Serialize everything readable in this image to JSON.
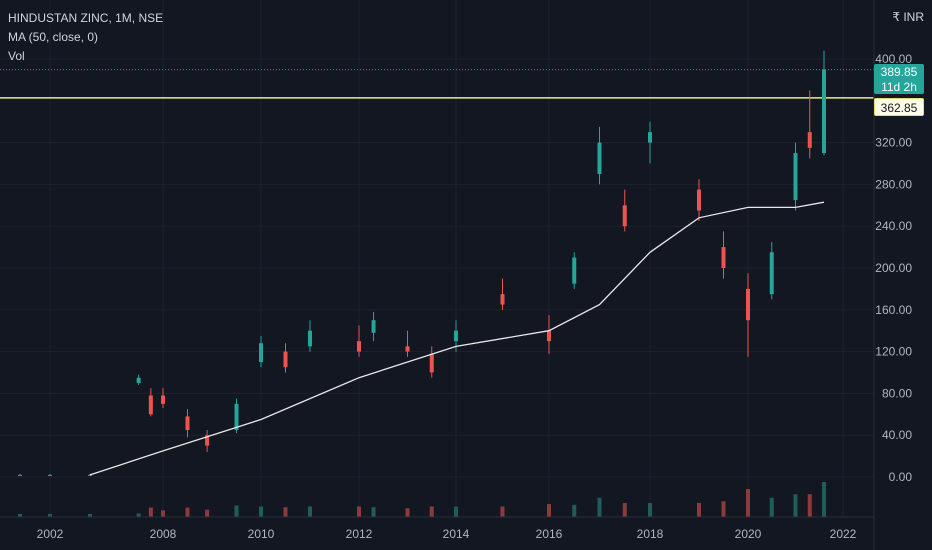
{
  "legend": {
    "symbol": "HINDUSTAN ZINC, 1M, NSE",
    "indicator": "MA (50, close, 0)",
    "volume": "Vol"
  },
  "currency": "₹ INR",
  "badges": {
    "last_price": "389.85",
    "countdown": "11d 2h",
    "level": "362.85"
  },
  "colors": {
    "background": "#131722",
    "up": "#26a69a",
    "down": "#ef5350",
    "ma": "#e8e8e8",
    "level_line": "#f5e98a",
    "grid": "#1e222d"
  },
  "chart_data": {
    "type": "candlestick",
    "title": "HINDUSTAN ZINC, 1M, NSE",
    "y_ticks": [
      "0.00",
      "40.00",
      "80.00",
      "120.00",
      "160.00",
      "200.00",
      "240.00",
      "280.00",
      "320.00",
      "400.00"
    ],
    "x_ticks": [
      "2002",
      "2008",
      "2010",
      "2012",
      "2014",
      "2016",
      "2018",
      "2020",
      "2022"
    ],
    "ylim": [
      -25,
      420
    ],
    "grid": true,
    "legend_position": "top-left",
    "horizontal_level": 362.85,
    "last_price": 389.85,
    "series": [
      {
        "name": "HINDUSTAN ZINC",
        "candles": [
          {
            "date": "2000",
            "o": 2,
            "h": 3,
            "l": 1,
            "c": 2
          },
          {
            "date": "2002",
            "o": 2,
            "h": 3,
            "l": 1,
            "c": 2
          },
          {
            "date": "2005",
            "o": 2,
            "h": 3,
            "l": 1,
            "c": 2
          },
          {
            "date": "2007",
            "o": 90,
            "h": 98,
            "l": 88,
            "c": 95
          },
          {
            "date": "2007.5",
            "o": 78,
            "h": 85,
            "l": 58,
            "c": 60
          },
          {
            "date": "2008",
            "o": 78,
            "h": 85,
            "l": 66,
            "c": 70
          },
          {
            "date": "2008.5",
            "o": 58,
            "h": 65,
            "l": 38,
            "c": 45
          },
          {
            "date": "2008.9",
            "o": 40,
            "h": 45,
            "l": 24,
            "c": 30
          },
          {
            "date": "2009.5",
            "o": 45,
            "h": 75,
            "l": 42,
            "c": 70
          },
          {
            "date": "2010",
            "o": 110,
            "h": 135,
            "l": 105,
            "c": 128
          },
          {
            "date": "2010.5",
            "o": 120,
            "h": 128,
            "l": 100,
            "c": 105
          },
          {
            "date": "2011",
            "o": 125,
            "h": 150,
            "l": 120,
            "c": 140
          },
          {
            "date": "2012",
            "o": 130,
            "h": 145,
            "l": 115,
            "c": 120
          },
          {
            "date": "2012.3",
            "o": 138,
            "h": 158,
            "l": 130,
            "c": 150
          },
          {
            "date": "2013",
            "o": 125,
            "h": 140,
            "l": 115,
            "c": 120
          },
          {
            "date": "2013.5",
            "o": 118,
            "h": 125,
            "l": 95,
            "c": 100
          },
          {
            "date": "2014",
            "o": 130,
            "h": 150,
            "l": 120,
            "c": 140
          },
          {
            "date": "2015",
            "o": 175,
            "h": 190,
            "l": 160,
            "c": 165
          },
          {
            "date": "2016",
            "o": 140,
            "h": 155,
            "l": 118,
            "c": 130
          },
          {
            "date": "2016.5",
            "o": 185,
            "h": 215,
            "l": 180,
            "c": 210
          },
          {
            "date": "2017",
            "o": 290,
            "h": 335,
            "l": 280,
            "c": 320
          },
          {
            "date": "2017.5",
            "o": 260,
            "h": 275,
            "l": 235,
            "c": 240
          },
          {
            "date": "2018",
            "o": 320,
            "h": 340,
            "l": 300,
            "c": 330
          },
          {
            "date": "2019",
            "o": 275,
            "h": 285,
            "l": 245,
            "c": 255
          },
          {
            "date": "2019.5",
            "o": 220,
            "h": 235,
            "l": 190,
            "c": 200
          },
          {
            "date": "2020",
            "o": 180,
            "h": 195,
            "l": 115,
            "c": 150
          },
          {
            "date": "2020.5",
            "o": 175,
            "h": 225,
            "l": 170,
            "c": 215
          },
          {
            "date": "2021",
            "o": 265,
            "h": 320,
            "l": 255,
            "c": 310
          },
          {
            "date": "2021.3",
            "o": 330,
            "h": 370,
            "l": 305,
            "c": 315
          },
          {
            "date": "2021.6",
            "o": 310,
            "h": 408,
            "l": 308,
            "c": 389.85
          }
        ]
      },
      {
        "name": "MA (50, close, 0)",
        "points": [
          {
            "date": "2005",
            "v": 2
          },
          {
            "date": "2008",
            "v": 25
          },
          {
            "date": "2010",
            "v": 55
          },
          {
            "date": "2012",
            "v": 95
          },
          {
            "date": "2014",
            "v": 125
          },
          {
            "date": "2016",
            "v": 140
          },
          {
            "date": "2017",
            "v": 165
          },
          {
            "date": "2018",
            "v": 215
          },
          {
            "date": "2019",
            "v": 248
          },
          {
            "date": "2020",
            "v": 258
          },
          {
            "date": "2021",
            "v": 258
          },
          {
            "date": "2021.6",
            "v": 263
          }
        ]
      }
    ]
  }
}
